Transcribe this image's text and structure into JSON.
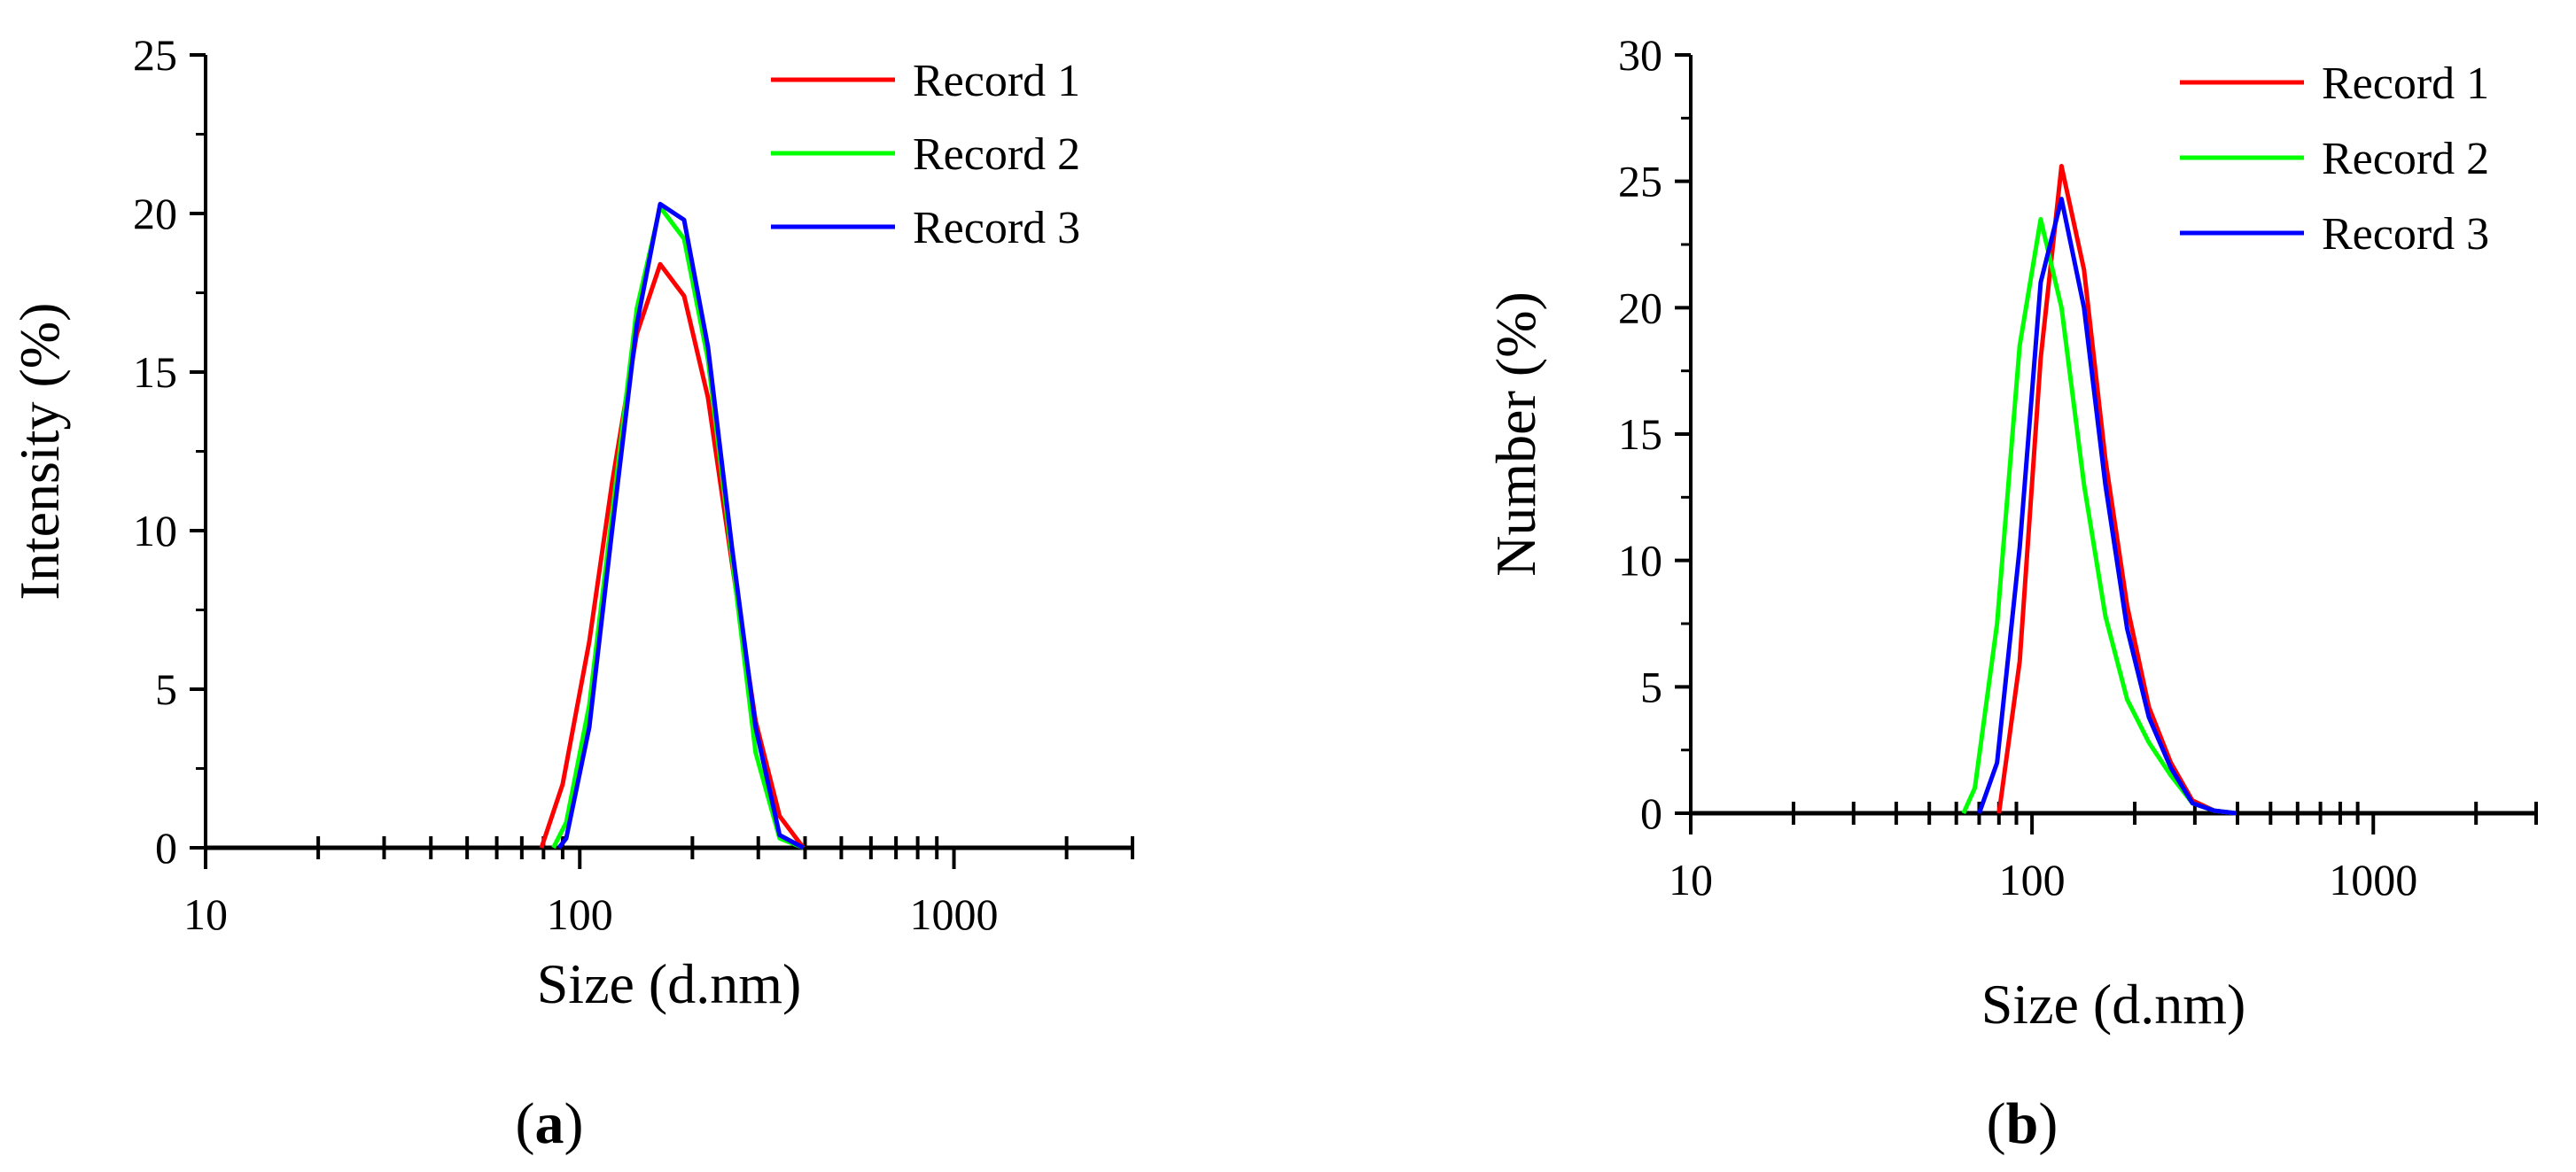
{
  "chart_data": [
    {
      "type": "line",
      "panel": "a",
      "xscale": "log",
      "xlim": [
        10,
        3000
      ],
      "ylim": [
        0,
        25
      ],
      "xlabel": "Size (d.nm)",
      "ylabel": "Intensity (%)",
      "xtick_labels": [
        "10",
        "100",
        "1000"
      ],
      "xtick_values": [
        10,
        100,
        1000
      ],
      "ytick_labels": [
        "0",
        "5",
        "10",
        "15",
        "20",
        "25"
      ],
      "ytick_values": [
        0,
        5,
        10,
        15,
        20,
        25
      ],
      "legend_position": "top-right",
      "series": [
        {
          "name": "Record 1",
          "color": "#ff0000",
          "x": [
            79,
            90,
            106,
            122,
            142,
            164,
            190,
            220,
            255,
            295,
            342,
            396
          ],
          "y": [
            0,
            2.0,
            6.5,
            11.5,
            16.2,
            18.4,
            17.4,
            14.2,
            9.0,
            4.0,
            1.0,
            0
          ]
        },
        {
          "name": "Record 2",
          "color": "#00ff00",
          "x": [
            85,
            92,
            106,
            122,
            142,
            164,
            190,
            220,
            255,
            295,
            342,
            396
          ],
          "y": [
            0,
            0.8,
            4.5,
            10.5,
            17.0,
            20.2,
            19.2,
            15.4,
            9.2,
            3.0,
            0.3,
            0
          ]
        },
        {
          "name": "Record 3",
          "color": "#0000ff",
          "x": [
            88,
            92,
            106,
            122,
            142,
            164,
            190,
            220,
            255,
            295,
            342,
            396
          ],
          "y": [
            0,
            0.3,
            3.8,
            10.0,
            16.5,
            20.3,
            19.8,
            15.8,
            9.5,
            3.8,
            0.4,
            0
          ]
        }
      ]
    },
    {
      "type": "line",
      "panel": "b",
      "xscale": "log",
      "xlim": [
        10,
        3000
      ],
      "ylim": [
        0,
        30
      ],
      "xlabel": "Size (d.nm)",
      "ylabel": "Number (%)",
      "xtick_labels": [
        "10",
        "100",
        "1000"
      ],
      "xtick_values": [
        10,
        100,
        1000
      ],
      "ytick_labels": [
        "0",
        "5",
        "10",
        "15",
        "20",
        "25",
        "30"
      ],
      "ytick_values": [
        0,
        5,
        10,
        15,
        20,
        25,
        30
      ],
      "legend_position": "top-right",
      "series": [
        {
          "name": "Record 1",
          "color": "#ff0000",
          "x": [
            80,
            92,
            106,
            122,
            142,
            164,
            190,
            220,
            255,
            295,
            342,
            396
          ],
          "y": [
            0,
            6.0,
            18.0,
            25.6,
            21.5,
            14.0,
            8.2,
            4.2,
            2.0,
            0.5,
            0.1,
            0
          ]
        },
        {
          "name": "Record 2",
          "color": "#00ff00",
          "x": [
            63,
            68,
            79,
            92,
            106,
            122,
            142,
            164,
            190,
            220,
            255,
            295,
            342,
            396
          ],
          "y": [
            0,
            1.0,
            7.5,
            18.5,
            23.5,
            20.0,
            13.0,
            7.8,
            4.5,
            2.8,
            1.5,
            0.4,
            0.1,
            0
          ]
        },
        {
          "name": "Record 3",
          "color": "#0000ff",
          "x": [
            70,
            79,
            92,
            106,
            122,
            142,
            164,
            190,
            220,
            255,
            295,
            342,
            396
          ],
          "y": [
            0,
            2.0,
            10.5,
            21.0,
            24.3,
            20.0,
            13.0,
            7.3,
            3.8,
            1.8,
            0.4,
            0.1,
            0
          ]
        }
      ]
    }
  ],
  "panel_labels": [
    {
      "open": "(",
      "letter": "a",
      "close": ")"
    },
    {
      "open": "(",
      "letter": "b",
      "close": ")"
    }
  ]
}
